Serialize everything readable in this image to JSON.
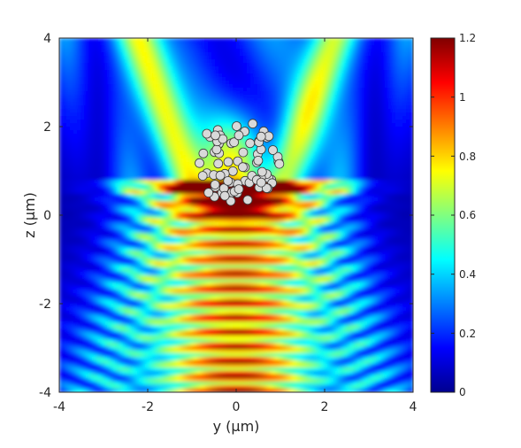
{
  "chart_data": {
    "type": "heatmap",
    "title": "",
    "xlabel": "y (μm)",
    "ylabel": "z (μm)",
    "xlim": [
      -4,
      4
    ],
    "ylim": [
      -4,
      4
    ],
    "xticks": [
      "-4",
      "-2",
      "0",
      "2",
      "4"
    ],
    "yticks": [
      "-4",
      "-2",
      "0",
      "2",
      "4"
    ],
    "colormap": "jet",
    "clim": [
      0,
      1.2
    ],
    "colorbar_ticks": [
      "0",
      "0.2",
      "0.4",
      "0.6",
      "0.8",
      "1",
      "1.2"
    ],
    "particle_cluster": {
      "center": [
        0.0,
        1.2
      ],
      "radius": 1.0,
      "count": 80,
      "fill_color": "#d9d9d9",
      "edge_color": "#3a3a3a"
    },
    "colors": {
      "low": "#00008f",
      "mid": "#80ff80",
      "high": "#800000"
    }
  }
}
